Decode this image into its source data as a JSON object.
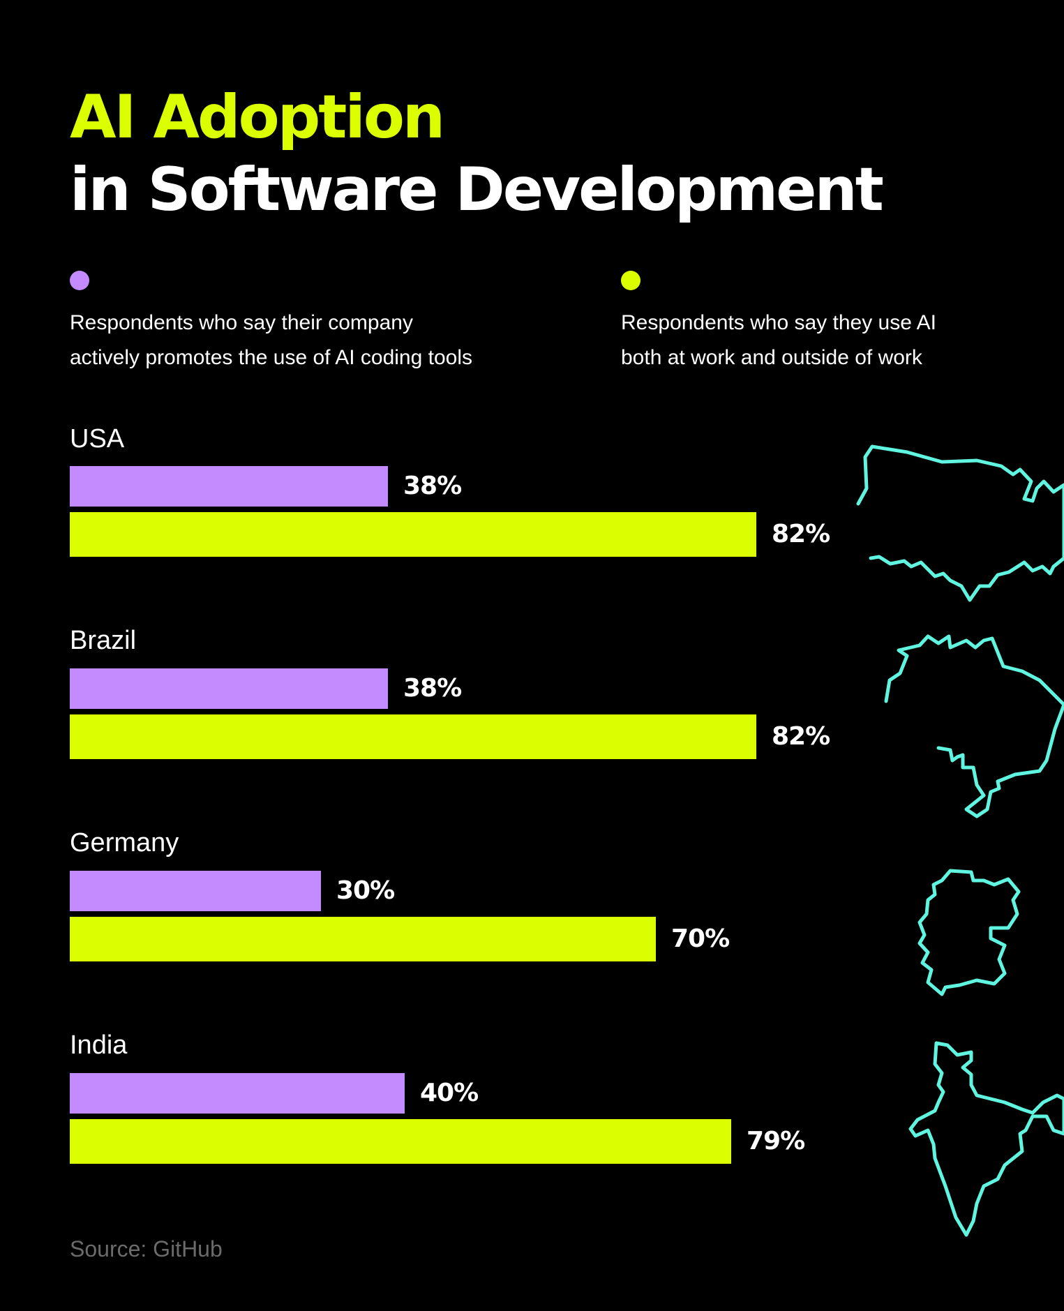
{
  "title": {
    "line1": "AI Adoption",
    "line2": "in Software Development"
  },
  "colors": {
    "background": "#000000",
    "promote": "#c38bff",
    "use": "#dcff00",
    "map_outline": "#5ff5e0",
    "text": "#ffffff",
    "source": "#6b6b6b"
  },
  "legend": [
    {
      "key": "promote",
      "text_line1": "Respondents who say their company",
      "text_line2": "actively promotes the use of AI coding tools"
    },
    {
      "key": "use",
      "text_line1": "Respondents who say they use AI",
      "text_line2": "both at work and outside of work"
    }
  ],
  "chart_data": {
    "type": "bar",
    "orientation": "horizontal",
    "categories": [
      "USA",
      "Brazil",
      "Germany",
      "India"
    ],
    "series": [
      {
        "name": "Respondents who say their company actively promotes the use of AI coding tools",
        "key": "promote",
        "values": [
          38,
          38,
          30,
          40
        ],
        "labels": [
          "38%",
          "38%",
          "30%",
          "40%"
        ]
      },
      {
        "name": "Respondents who say they use AI both at work and outside of work",
        "key": "use",
        "values": [
          82,
          82,
          70,
          79
        ],
        "labels": [
          "82%",
          "82%",
          "70%",
          "79%"
        ]
      }
    ],
    "unit": "%",
    "xlim": [
      0,
      100
    ],
    "title": "AI Adoption in Software Development"
  },
  "source": "Source: GitHub"
}
